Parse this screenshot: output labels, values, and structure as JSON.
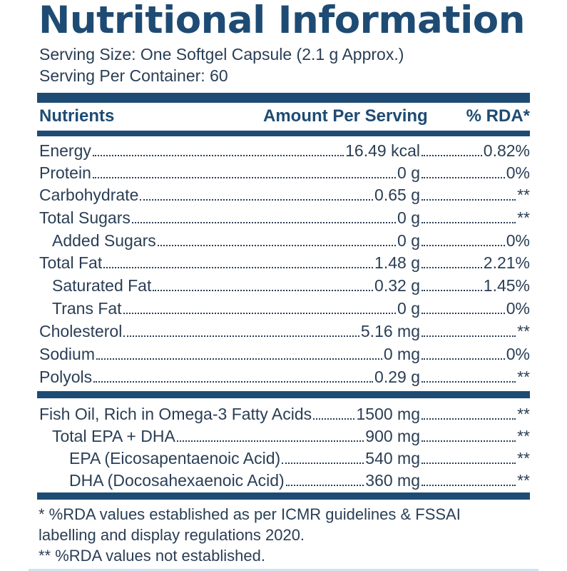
{
  "title": "Nutritional Information",
  "serving_size": "Serving Size: One Softgel Capsule (2.1 g Approx.)",
  "serving_per_container": "Serving Per Container: 60",
  "header": {
    "nutrients": "Nutrients",
    "amount": "Amount Per Serving",
    "rda": "% RDA*"
  },
  "rows": [
    {
      "name": "Energy",
      "amount": "16.49 kcal",
      "rda": "0.82%"
    },
    {
      "name": "Protein",
      "amount": "0 g",
      "rda": "0%"
    },
    {
      "name": "Carbohydrate",
      "amount": "0.65 g",
      "rda": "**"
    },
    {
      "name": "Total Sugars",
      "amount": "0 g",
      "rda": "**"
    },
    {
      "name": "Added Sugars",
      "amount": "0 g",
      "rda": "0%"
    },
    {
      "name": "Total Fat",
      "amount": "1.48 g",
      "rda": "2.21%"
    },
    {
      "name": "Saturated Fat",
      "amount": "0.32 g",
      "rda": "1.45%"
    },
    {
      "name": "Trans Fat",
      "amount": "0 g",
      "rda": "0%"
    },
    {
      "name": "Cholesterol",
      "amount": "5.16 mg",
      "rda": "**"
    },
    {
      "name": "Sodium",
      "amount": "0 mg",
      "rda": "0%"
    },
    {
      "name": "Polyols",
      "amount": "0.29 g",
      "rda": "**"
    }
  ],
  "omega_rows": [
    {
      "name": "Fish Oil, Rich in Omega-3 Fatty Acids",
      "amount": "1500 mg",
      "rda": "**"
    },
    {
      "name": "Total EPA + DHA",
      "amount": "900 mg",
      "rda": "**"
    },
    {
      "name": "EPA (Eicosapentaenoic Acid)",
      "amount": "540 mg",
      "rda": "**"
    },
    {
      "name": "DHA (Docosahexaenoic Acid)",
      "amount": "360 mg",
      "rda": "**"
    }
  ],
  "footnotes": [
    "* %RDA values established as per ICMR guidelines & FSSAI",
    "labelling and display regulations 2020.",
    "** %RDA values not established."
  ]
}
